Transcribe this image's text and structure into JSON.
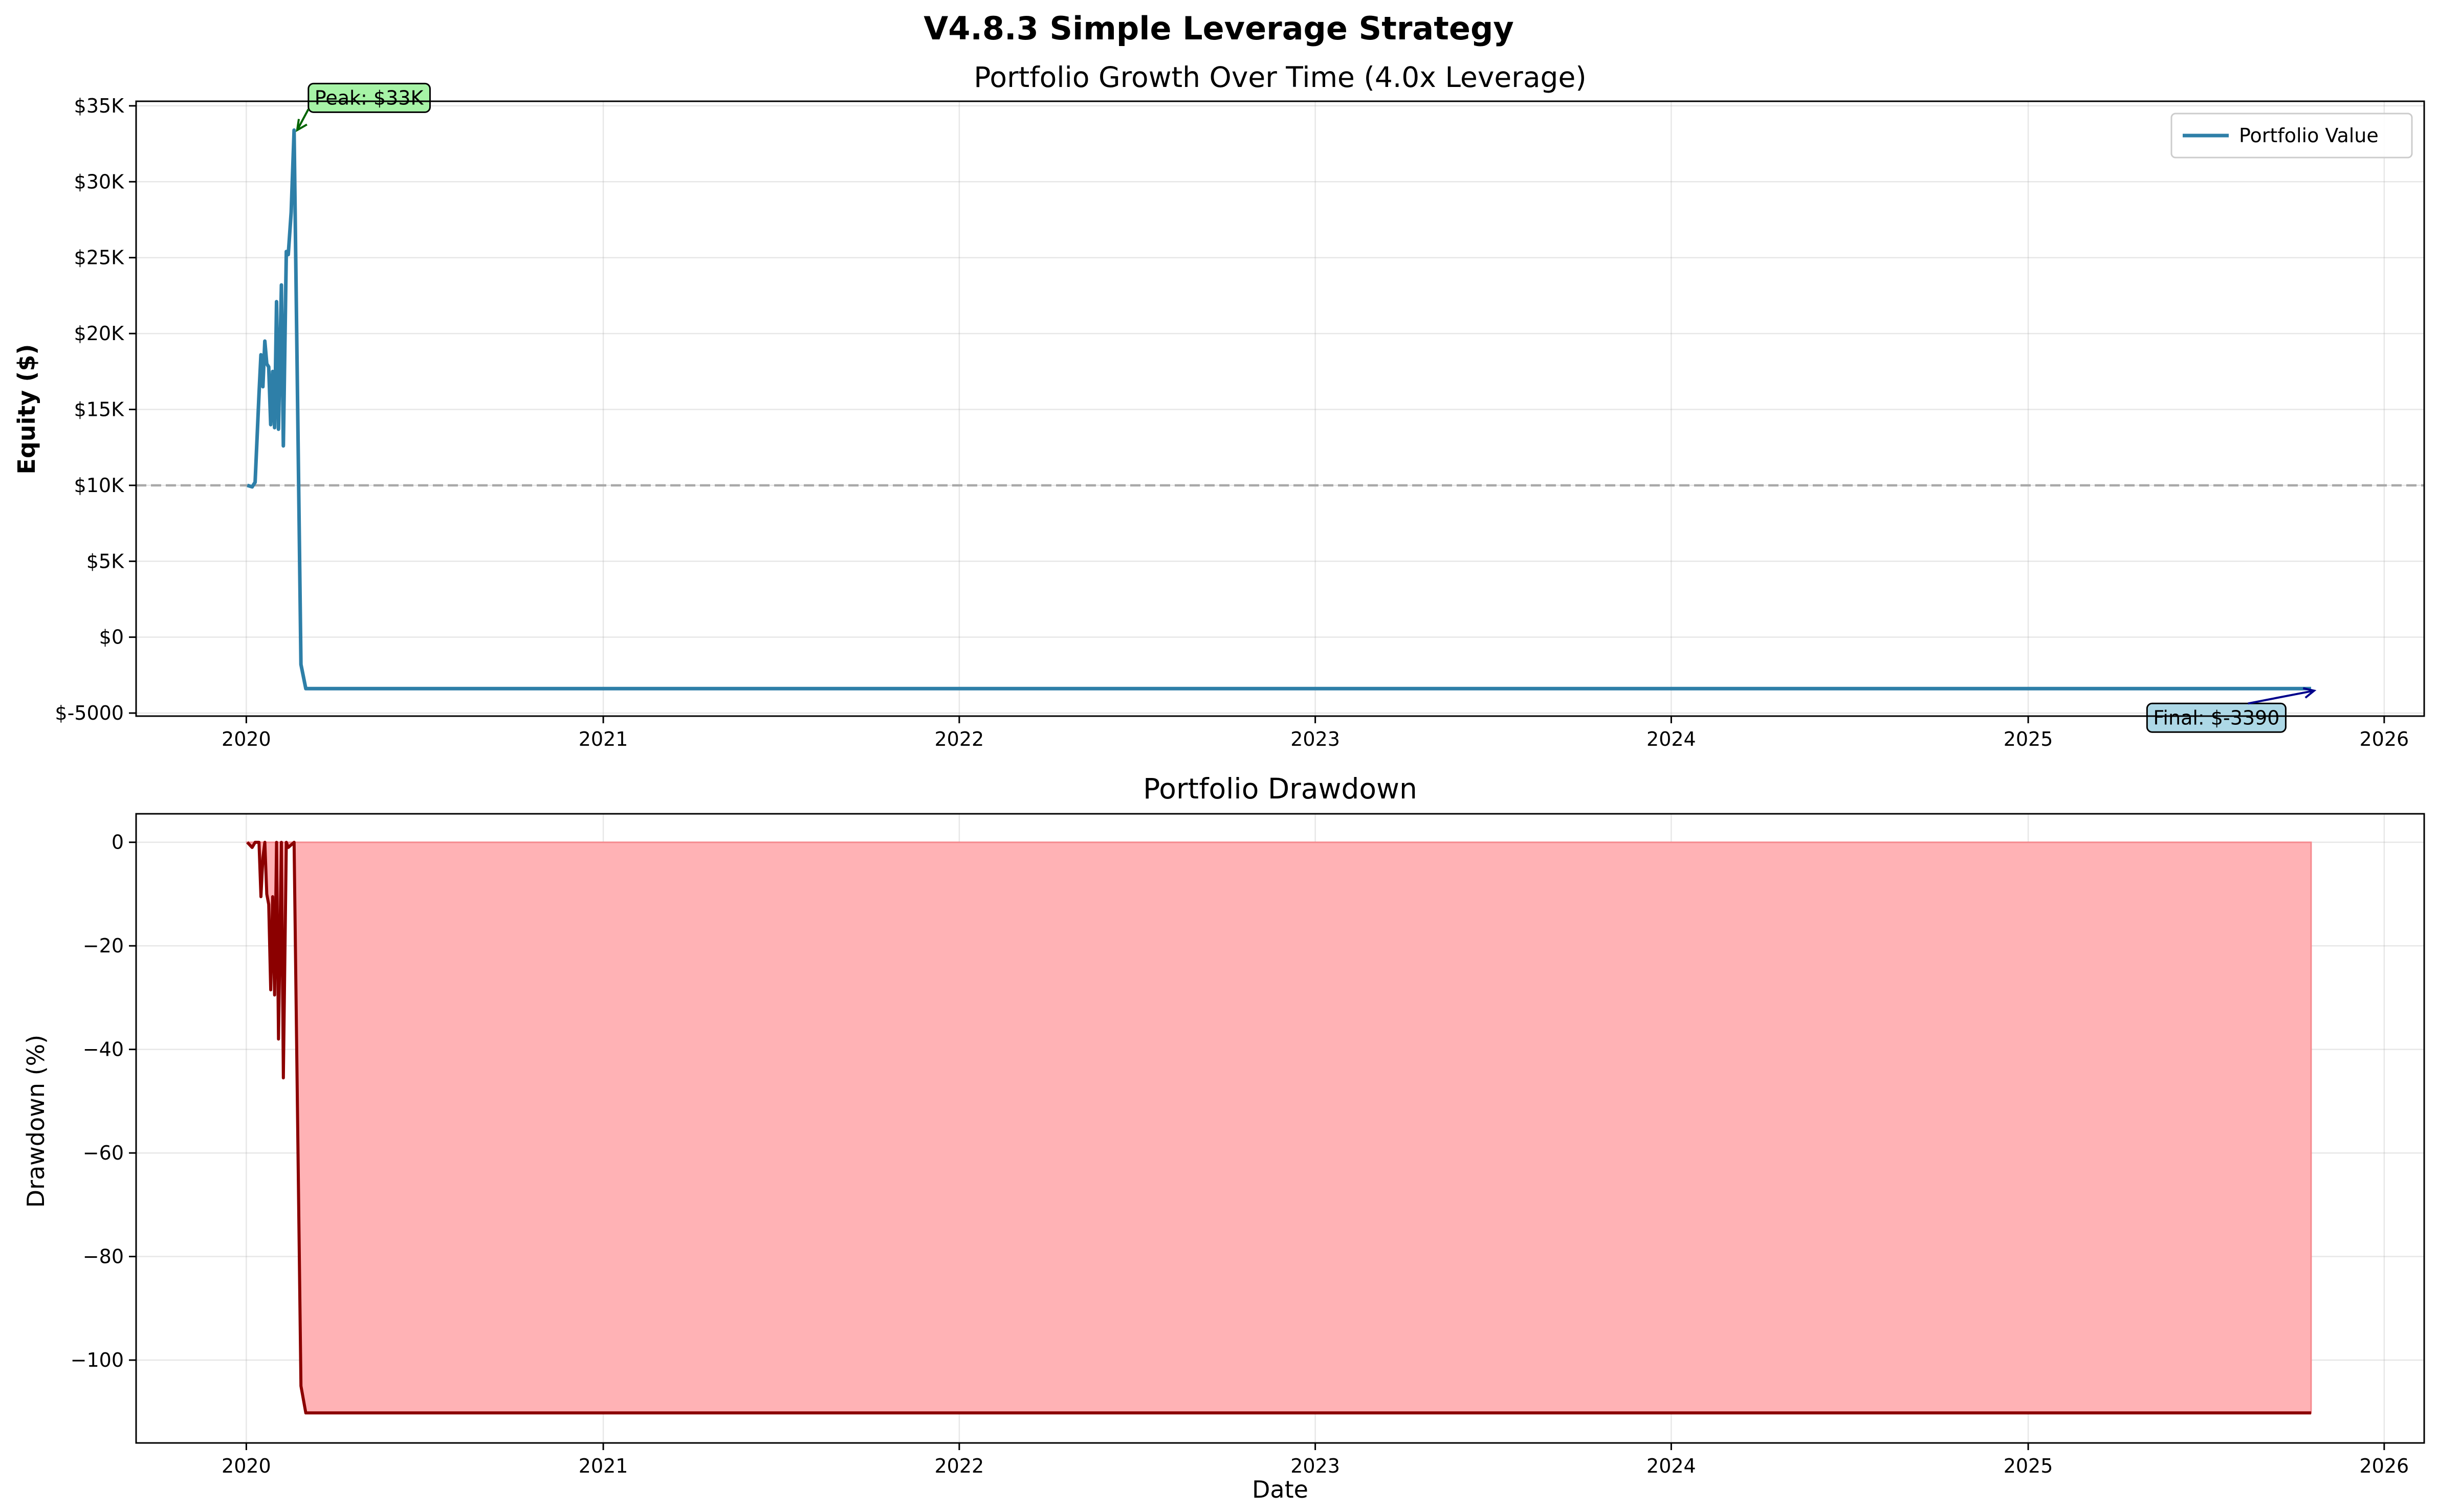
{
  "chart_data": [
    {
      "type": "line",
      "suptitle": "V4.8.3 Simple Leverage Strategy",
      "title": "Portfolio Growth Over Time (4.0x Leverage)",
      "xlabel": "",
      "ylabel": "Equity ($)",
      "x_ticks": [
        {
          "date": "2020-01-01",
          "label": "2020"
        },
        {
          "date": "2021-01-01",
          "label": "2021"
        },
        {
          "date": "2022-01-01",
          "label": "2022"
        },
        {
          "date": "2023-01-01",
          "label": "2023"
        },
        {
          "date": "2024-01-01",
          "label": "2024"
        },
        {
          "date": "2025-01-01",
          "label": "2025"
        },
        {
          "date": "2026-01-01",
          "label": "2026"
        }
      ],
      "xlim": [
        "2019-09-10",
        "2026-02-11"
      ],
      "ylim": [
        -5200,
        35300
      ],
      "y_ticks": [
        {
          "value": -5000,
          "label": "$-5000"
        },
        {
          "value": 0,
          "label": "$0"
        },
        {
          "value": 5000,
          "label": "$5K"
        },
        {
          "value": 10000,
          "label": "$10K"
        },
        {
          "value": 15000,
          "label": "$15K"
        },
        {
          "value": 20000,
          "label": "$20K"
        },
        {
          "value": 25000,
          "label": "$25K"
        },
        {
          "value": 30000,
          "label": "$30K"
        },
        {
          "value": 35000,
          "label": "$35K"
        }
      ],
      "grid": true,
      "legend": {
        "placement": "upper-right",
        "entries": [
          "Portfolio Value"
        ]
      },
      "reference_line": {
        "y": 10000,
        "color": "#a9a9a9",
        "style": "dashed"
      },
      "series": [
        {
          "name": "Portfolio Value",
          "color": "#2e7fa8",
          "points": [
            [
              "2020-01-02",
              10000
            ],
            [
              "2020-01-07",
              9900
            ],
            [
              "2020-01-10",
              10200
            ],
            [
              "2020-01-14",
              16000
            ],
            [
              "2020-01-16",
              18600
            ],
            [
              "2020-01-18",
              16500
            ],
            [
              "2020-01-20",
              19500
            ],
            [
              "2020-01-22",
              18000
            ],
            [
              "2020-01-24",
              17800
            ],
            [
              "2020-01-26",
              14000
            ],
            [
              "2020-01-28",
              17500
            ],
            [
              "2020-01-30",
              13800
            ],
            [
              "2020-02-01",
              22100
            ],
            [
              "2020-02-03",
              13700
            ],
            [
              "2020-02-06",
              23200
            ],
            [
              "2020-02-08",
              12600
            ],
            [
              "2020-02-11",
              25400
            ],
            [
              "2020-02-13",
              25200
            ],
            [
              "2020-02-16",
              28000
            ],
            [
              "2020-02-19",
              33400
            ],
            [
              "2020-02-26",
              -1800
            ],
            [
              "2020-03-02",
              -3390
            ],
            [
              "2025-10-18",
              -3390
            ]
          ]
        }
      ],
      "annotations": [
        {
          "text": "Peak: $33K",
          "date": "2020-02-19",
          "value": 33400,
          "box_color": "#a6f3a6",
          "arrow_color": "#006400"
        },
        {
          "text": "Final: $-3390",
          "date": "2025-10-18",
          "value": -3390,
          "box_color": "#add8e6",
          "arrow_color": "#00008b"
        }
      ]
    },
    {
      "type": "area",
      "title": "Portfolio Drawdown",
      "xlabel": "Date",
      "ylabel": "Drawdown (%)",
      "xlim": [
        "2019-09-10",
        "2026-02-11"
      ],
      "ylim": [
        -116,
        5.5
      ],
      "y_ticks": [
        {
          "value": 0,
          "label": "0"
        },
        {
          "value": -20,
          "label": "−20"
        },
        {
          "value": -40,
          "label": "−40"
        },
        {
          "value": -60,
          "label": "−60"
        },
        {
          "value": -80,
          "label": "−80"
        },
        {
          "value": -100,
          "label": "−100"
        }
      ],
      "grid": true,
      "fill_color": "#ffb2b5",
      "series": [
        {
          "name": "Drawdown",
          "color": "#8b0000",
          "points": [
            [
              "2020-01-02",
              0
            ],
            [
              "2020-01-07",
              -1.0
            ],
            [
              "2020-01-10",
              0
            ],
            [
              "2020-01-14",
              0
            ],
            [
              "2020-01-16",
              -10.5
            ],
            [
              "2020-01-18",
              -3
            ],
            [
              "2020-01-20",
              0
            ],
            [
              "2020-01-22",
              -10
            ],
            [
              "2020-01-24",
              -12
            ],
            [
              "2020-01-26",
              -28.5
            ],
            [
              "2020-01-28",
              -10.5
            ],
            [
              "2020-01-30",
              -29.5
            ],
            [
              "2020-02-01",
              0
            ],
            [
              "2020-02-03",
              -38
            ],
            [
              "2020-02-06",
              0
            ],
            [
              "2020-02-08",
              -45.5
            ],
            [
              "2020-02-11",
              0
            ],
            [
              "2020-02-13",
              -1
            ],
            [
              "2020-02-16",
              -0.5
            ],
            [
              "2020-02-19",
              0
            ],
            [
              "2020-02-26",
              -105
            ],
            [
              "2020-03-02",
              -110.2
            ],
            [
              "2025-10-18",
              -110.2
            ]
          ]
        }
      ]
    }
  ]
}
